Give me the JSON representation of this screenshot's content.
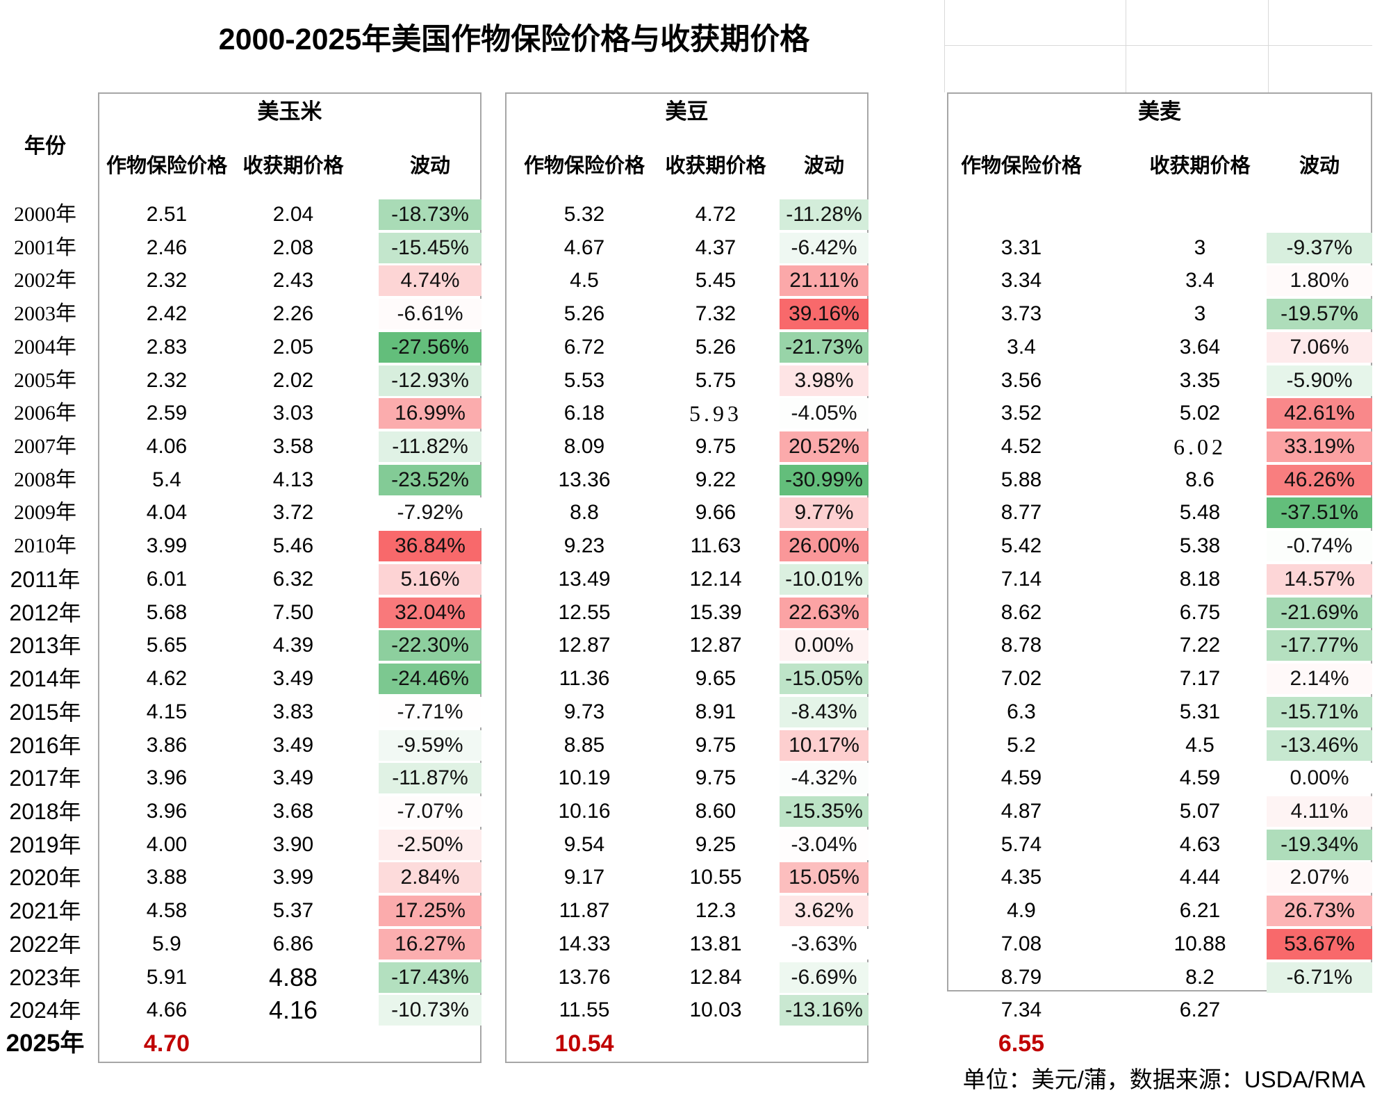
{
  "title": "2000-2025年美国作物保险价格与收获期价格",
  "footer": "单位：美元/蒲，数据来源：USDA/RMA",
  "columns": {
    "year": "年份",
    "insurance": "作物保险价格",
    "harvest": "收获期价格",
    "fluctuation": "波动"
  },
  "sections": [
    {
      "id": "corn",
      "name": "美玉米"
    },
    {
      "id": "soy",
      "name": "美豆"
    },
    {
      "id": "wheat",
      "name": "美麦"
    }
  ],
  "colors": {
    "scale_green_end": "#63be7b",
    "scale_red_end": "#f8696b",
    "scale_mid": "#ffffff",
    "highlight_text": "#c00000",
    "box_border": "#a6a6a6",
    "gridline": "#d9d9d9"
  },
  "font_quirks": {
    "serif_year_rows": [
      0,
      1,
      2,
      3,
      4,
      5,
      6,
      7,
      8,
      9,
      10
    ],
    "big_harvest_cells": {
      "corn": [
        23,
        24
      ]
    },
    "wide_harvest_cells": {
      "soy": [
        6
      ],
      "wheat": [
        7
      ]
    }
  },
  "rows": [
    {
      "year": "2000年",
      "corn": [
        "2.51",
        "2.04",
        "-18.73%",
        "#A9DBB6"
      ],
      "soy": [
        "5.32",
        "4.72",
        "-11.28%",
        "#D3EDDA"
      ],
      "wheat": [
        "",
        "",
        "",
        ""
      ]
    },
    {
      "year": "2001年",
      "corn": [
        "2.46",
        "2.08",
        "-15.45%",
        "#C3E6CC"
      ],
      "soy": [
        "4.67",
        "4.37",
        "-6.42%",
        "#EFF8F2"
      ],
      "wheat": [
        "3.31",
        "3",
        "-9.37%",
        "#D8EFDE"
      ]
    },
    {
      "year": "2002年",
      "corn": [
        "2.32",
        "2.43",
        "4.74%",
        "#FDD5D5"
      ],
      "soy": [
        "4.5",
        "5.45",
        "21.11%",
        "#FBA8A9"
      ],
      "wheat": [
        "3.34",
        "3.4",
        "1.80%",
        "#FFFAFA"
      ]
    },
    {
      "year": "2003年",
      "corn": [
        "2.42",
        "2.26",
        "-6.61%",
        "#FFFBFB"
      ],
      "soy": [
        "5.26",
        "7.32",
        "39.16%",
        "#F8696B"
      ],
      "wheat": [
        "3.73",
        "3",
        "-19.57%",
        "#AEDDBA"
      ]
    },
    {
      "year": "2004年",
      "corn": [
        "2.83",
        "2.05",
        "-27.56%",
        "#63BE7B"
      ],
      "soy": [
        "6.72",
        "5.26",
        "-21.73%",
        "#98D4A8"
      ],
      "wheat": [
        "3.4",
        "3.64",
        "7.06%",
        "#FEEBEC"
      ]
    },
    {
      "year": "2005年",
      "corn": [
        "2.32",
        "2.02",
        "-12.93%",
        "#D7EEDD"
      ],
      "soy": [
        "5.53",
        "5.75",
        "3.98%",
        "#FEE4E5"
      ],
      "wheat": [
        "3.56",
        "3.35",
        "-5.90%",
        "#E6F5EA"
      ]
    },
    {
      "year": "2006年",
      "corn": [
        "2.59",
        "3.03",
        "16.99%",
        "#FBACAD"
      ],
      "soy": [
        "6.18",
        "5.93",
        "-4.05%",
        "#FDFEFD"
      ],
      "wheat": [
        "3.52",
        "5.02",
        "42.61%",
        "#F9888A"
      ]
    },
    {
      "year": "2007年",
      "corn": [
        "4.06",
        "3.58",
        "-11.82%",
        "#E0F2E5"
      ],
      "soy": [
        "8.09",
        "9.75",
        "20.52%",
        "#FBAAAB"
      ],
      "wheat": [
        "4.52",
        "6.02",
        "33.19%",
        "#FBA2A3"
      ]
    },
    {
      "year": "2008年",
      "corn": [
        "5.4",
        "4.13",
        "-23.52%",
        "#83CB96"
      ],
      "soy": [
        "13.36",
        "9.22",
        "-30.99%",
        "#63BE7B"
      ],
      "wheat": [
        "5.88",
        "8.6",
        "46.26%",
        "#F97E7F"
      ]
    },
    {
      "year": "2009年",
      "corn": [
        "4.04",
        "3.72",
        "-7.92%",
        "#FFFFFF"
      ],
      "soy": [
        "8.8",
        "9.66",
        "9.77%",
        "#FDD0D1"
      ],
      "wheat": [
        "8.77",
        "5.48",
        "-37.51%",
        "#63BE7B"
      ]
    },
    {
      "year": "2010年",
      "corn": [
        "3.99",
        "5.46",
        "36.84%",
        "#F8696B"
      ],
      "soy": [
        "9.23",
        "11.63",
        "26.00%",
        "#FA9799"
      ],
      "wheat": [
        "5.42",
        "5.38",
        "-0.74%",
        "#FCFEFC"
      ]
    },
    {
      "year": "2011年",
      "corn": [
        "6.01",
        "6.32",
        "5.16%",
        "#FDD3D4"
      ],
      "soy": [
        "13.49",
        "12.14",
        "-10.01%",
        "#DBF0E0"
      ],
      "wheat": [
        "7.14",
        "8.18",
        "14.57%",
        "#FDD6D7"
      ]
    },
    {
      "year": "2012年",
      "corn": [
        "5.68",
        "7.50",
        "32.04%",
        "#F9797B"
      ],
      "soy": [
        "12.55",
        "15.39",
        "22.63%",
        "#FBA3A4"
      ],
      "wheat": [
        "8.62",
        "6.75",
        "-21.69%",
        "#A5D9B3"
      ]
    },
    {
      "year": "2013年",
      "corn": [
        "5.65",
        "4.39",
        "-22.30%",
        "#8DCF9E"
      ],
      "soy": [
        "12.87",
        "12.87",
        "0.00%",
        "#FEF2F2"
      ],
      "wheat": [
        "8.78",
        "7.22",
        "-17.77%",
        "#B5E0C0"
      ]
    },
    {
      "year": "2014年",
      "corn": [
        "4.62",
        "3.49",
        "-24.46%",
        "#7CC890"
      ],
      "soy": [
        "11.36",
        "9.65",
        "-15.05%",
        "#BEE4C8"
      ],
      "wheat": [
        "7.02",
        "7.17",
        "2.14%",
        "#FFF9F9"
      ]
    },
    {
      "year": "2015年",
      "corn": [
        "4.15",
        "3.83",
        "-7.71%",
        "#FFFEFE"
      ],
      "soy": [
        "9.73",
        "8.91",
        "-8.43%",
        "#E4F4E8"
      ],
      "wheat": [
        "6.3",
        "5.31",
        "-15.71%",
        "#BEE4C8"
      ]
    },
    {
      "year": "2016年",
      "corn": [
        "3.86",
        "3.49",
        "-9.59%",
        "#F2F9F4"
      ],
      "soy": [
        "8.85",
        "9.75",
        "10.17%",
        "#FDCFCF"
      ],
      "wheat": [
        "5.2",
        "4.5",
        "-13.46%",
        "#C7E8D0"
      ]
    },
    {
      "year": "2017年",
      "corn": [
        "3.96",
        "3.49",
        "-11.87%",
        "#E0F2E4"
      ],
      "soy": [
        "10.19",
        "9.75",
        "-4.32%",
        "#FBFDFC"
      ],
      "wheat": [
        "4.59",
        "4.59",
        "0.00%",
        "#FFFFFF"
      ]
    },
    {
      "year": "2018年",
      "corn": [
        "3.96",
        "3.68",
        "-7.07%",
        "#FFFCFC"
      ],
      "soy": [
        "10.16",
        "8.60",
        "-15.35%",
        "#BCE3C6"
      ],
      "wheat": [
        "4.87",
        "5.07",
        "4.11%",
        "#FEF4F4"
      ]
    },
    {
      "year": "2019年",
      "corn": [
        "4.00",
        "3.90",
        "-2.50%",
        "#FEEDED"
      ],
      "soy": [
        "9.54",
        "9.25",
        "-3.04%",
        "#FFFDFD"
      ],
      "wheat": [
        "5.74",
        "4.63",
        "-19.34%",
        "#AFDDBB"
      ]
    },
    {
      "year": "2020年",
      "corn": [
        "3.88",
        "3.99",
        "2.84%",
        "#FDDBDB"
      ],
      "soy": [
        "9.17",
        "10.55",
        "15.05%",
        "#FCBEBE"
      ],
      "wheat": [
        "4.35",
        "4.44",
        "2.07%",
        "#FFF9F9"
      ]
    },
    {
      "year": "2021年",
      "corn": [
        "4.58",
        "5.37",
        "17.25%",
        "#FBABAC"
      ],
      "soy": [
        "11.87",
        "12.3",
        "3.62%",
        "#FEE6E6"
      ],
      "wheat": [
        "4.9",
        "6.21",
        "26.73%",
        "#FCB4B5"
      ]
    },
    {
      "year": "2022年",
      "corn": [
        "5.9",
        "6.86",
        "16.27%",
        "#FBAEAF"
      ],
      "soy": [
        "14.33",
        "13.81",
        "-3.63%",
        "#FFFFFF"
      ],
      "wheat": [
        "7.08",
        "10.88",
        "53.67%",
        "#F8696B"
      ]
    },
    {
      "year": "2023年",
      "corn": [
        "5.91",
        "4.88",
        "-17.43%",
        "#B3E0BF"
      ],
      "soy": [
        "13.76",
        "12.84",
        "-6.69%",
        "#EEF8F0"
      ],
      "wheat": [
        "8.79",
        "8.2",
        "-6.71%",
        "#E3F3E7"
      ]
    },
    {
      "year": "2024年",
      "corn": [
        "4.66",
        "4.16",
        "-10.73%",
        "#E9F6EC"
      ],
      "soy": [
        "11.55",
        "10.03",
        "-13.16%",
        "#C9E8D1"
      ],
      "wheat": [
        "7.34",
        "6.27",
        "",
        ""
      ]
    },
    {
      "year": "2025年",
      "highlight": true,
      "corn": [
        "4.70",
        "",
        "",
        ""
      ],
      "soy": [
        "10.54",
        "",
        "",
        ""
      ],
      "wheat": [
        "6.55",
        "",
        "",
        ""
      ]
    }
  ],
  "chart_data": {
    "type": "table",
    "title": "2000-2025年美国作物保险价格与收获期价格",
    "unit": "美元/蒲",
    "source": "USDA/RMA",
    "categories": [
      "2000",
      "2001",
      "2002",
      "2003",
      "2004",
      "2005",
      "2006",
      "2007",
      "2008",
      "2009",
      "2010",
      "2011",
      "2012",
      "2013",
      "2014",
      "2015",
      "2016",
      "2017",
      "2018",
      "2019",
      "2020",
      "2021",
      "2022",
      "2023",
      "2024",
      "2025"
    ],
    "series": [
      {
        "name": "美玉米-作物保险价格",
        "values": [
          2.51,
          2.46,
          2.32,
          2.42,
          2.83,
          2.32,
          2.59,
          4.06,
          5.4,
          4.04,
          3.99,
          6.01,
          5.68,
          5.65,
          4.62,
          4.15,
          3.86,
          3.96,
          3.96,
          4.0,
          3.88,
          4.58,
          5.9,
          5.91,
          4.66,
          4.7
        ]
      },
      {
        "name": "美玉米-收获期价格",
        "values": [
          2.04,
          2.08,
          2.43,
          2.26,
          2.05,
          2.02,
          3.03,
          3.58,
          4.13,
          3.72,
          5.46,
          6.32,
          7.5,
          4.39,
          3.49,
          3.83,
          3.49,
          3.49,
          3.68,
          3.9,
          3.99,
          5.37,
          6.86,
          4.88,
          4.16,
          null
        ]
      },
      {
        "name": "美玉米-波动(%)",
        "values": [
          -18.73,
          -15.45,
          4.74,
          -6.61,
          -27.56,
          -12.93,
          16.99,
          -11.82,
          -23.52,
          -7.92,
          36.84,
          5.16,
          32.04,
          -22.3,
          -24.46,
          -7.71,
          -9.59,
          -11.87,
          -7.07,
          -2.5,
          2.84,
          17.25,
          16.27,
          -17.43,
          -10.73,
          null
        ]
      },
      {
        "name": "美豆-作物保险价格",
        "values": [
          5.32,
          4.67,
          4.5,
          5.26,
          6.72,
          5.53,
          6.18,
          8.09,
          13.36,
          8.8,
          9.23,
          13.49,
          12.55,
          12.87,
          11.36,
          9.73,
          8.85,
          10.19,
          10.16,
          9.54,
          9.17,
          11.87,
          14.33,
          13.76,
          11.55,
          10.54
        ]
      },
      {
        "name": "美豆-收获期价格",
        "values": [
          4.72,
          4.37,
          5.45,
          7.32,
          5.26,
          5.75,
          5.93,
          9.75,
          9.22,
          9.66,
          11.63,
          12.14,
          15.39,
          12.87,
          9.65,
          8.91,
          9.75,
          9.75,
          8.6,
          9.25,
          10.55,
          12.3,
          13.81,
          12.84,
          10.03,
          null
        ]
      },
      {
        "name": "美豆-波动(%)",
        "values": [
          -11.28,
          -6.42,
          21.11,
          39.16,
          -21.73,
          3.98,
          -4.05,
          20.52,
          -30.99,
          9.77,
          26.0,
          -10.01,
          22.63,
          0.0,
          -15.05,
          -8.43,
          10.17,
          -4.32,
          -15.35,
          -3.04,
          15.05,
          3.62,
          -3.63,
          -6.69,
          -13.16,
          null
        ]
      },
      {
        "name": "美麦-作物保险价格",
        "values": [
          null,
          3.31,
          3.34,
          3.73,
          3.4,
          3.56,
          3.52,
          4.52,
          5.88,
          8.77,
          5.42,
          7.14,
          8.62,
          8.78,
          7.02,
          6.3,
          5.2,
          4.59,
          4.87,
          5.74,
          4.35,
          4.9,
          7.08,
          8.79,
          7.34,
          6.55
        ]
      },
      {
        "name": "美麦-收获期价格",
        "values": [
          null,
          3,
          3.4,
          3,
          3.64,
          3.35,
          5.02,
          6.02,
          8.6,
          5.48,
          5.38,
          8.18,
          6.75,
          7.22,
          7.17,
          5.31,
          4.5,
          4.59,
          5.07,
          4.63,
          4.44,
          6.21,
          10.88,
          8.2,
          6.27,
          null
        ]
      },
      {
        "name": "美麦-波动(%)",
        "values": [
          null,
          -9.37,
          1.8,
          -19.57,
          7.06,
          -5.9,
          42.61,
          33.19,
          46.26,
          -37.51,
          -0.74,
          14.57,
          -21.69,
          -17.77,
          2.14,
          -15.71,
          -13.46,
          0.0,
          4.11,
          -19.34,
          2.07,
          26.73,
          53.67,
          -6.71,
          null,
          null
        ]
      }
    ]
  }
}
